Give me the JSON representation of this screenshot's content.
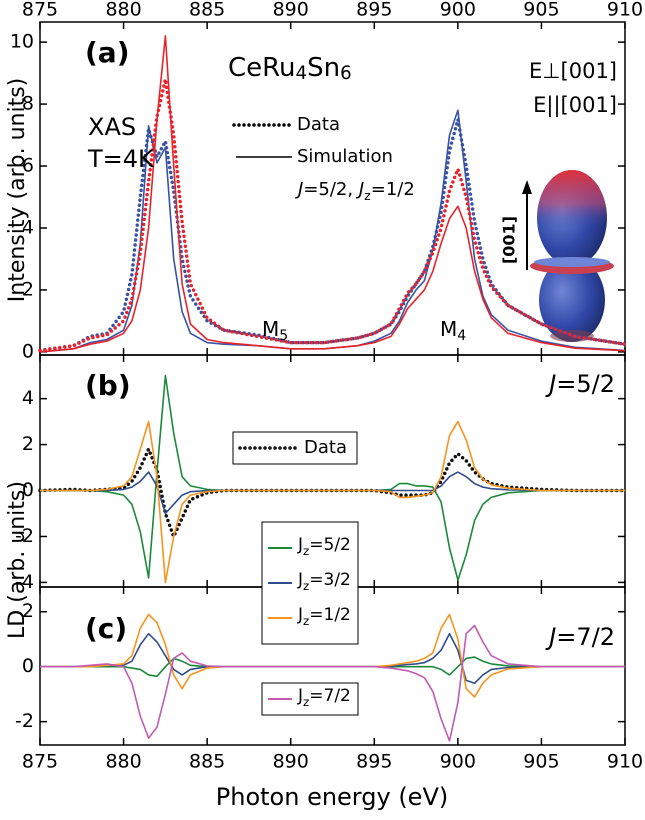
{
  "chart_data": [
    {
      "type": "line",
      "panel": "(a)",
      "y_label": "Intensity (arb. units)",
      "xlim": [
        875,
        910
      ],
      "xticks": [
        875,
        880,
        885,
        890,
        895,
        900,
        905,
        910
      ],
      "ylim": [
        -0.1,
        10.65
      ],
      "yticks": [
        0,
        2,
        4,
        6,
        8,
        10
      ],
      "x": [
        875,
        877,
        878,
        879,
        880,
        880.5,
        881,
        881.5,
        882,
        882.5,
        883,
        883.5,
        884,
        885,
        886,
        888,
        890,
        892,
        894,
        895,
        896,
        896.5,
        897,
        897.5,
        898,
        898.5,
        899,
        899.5,
        900,
        900.5,
        901,
        901.5,
        902,
        903,
        905,
        907,
        910
      ],
      "style_legend": {
        "data": "Data",
        "simulation": "Simulation"
      },
      "series": [
        {
          "name": "E⊥[001]",
          "color": "#3953a4",
          "line_style": "dotted",
          "values": [
            0.05,
            0.2,
            0.5,
            0.6,
            1.3,
            2.5,
            5.0,
            7.2,
            6.3,
            6.8,
            5.2,
            3.0,
            1.8,
            1.0,
            0.7,
            0.55,
            0.3,
            0.3,
            0.45,
            0.6,
            0.9,
            1.3,
            1.8,
            2.2,
            2.6,
            3.4,
            4.5,
            6.5,
            7.5,
            6.0,
            4.2,
            3.0,
            2.2,
            1.5,
            0.9,
            0.5,
            0.25
          ],
          "simulation": [
            0.0,
            0.1,
            0.3,
            0.4,
            0.7,
            1.5,
            3.5,
            7.3,
            6.1,
            6.6,
            3.0,
            1.3,
            0.6,
            0.3,
            0.25,
            0.2,
            0.1,
            0.1,
            0.2,
            0.35,
            0.6,
            1.0,
            1.6,
            2.0,
            2.3,
            3.3,
            4.8,
            7.0,
            7.8,
            5.5,
            3.0,
            1.8,
            1.2,
            0.7,
            0.35,
            0.15,
            0.05
          ]
        },
        {
          "name": "E||[001]",
          "color": "#e8232a",
          "line_style": "dotted",
          "values": [
            0.05,
            0.2,
            0.45,
            0.55,
            1.0,
            1.7,
            3.2,
            5.5,
            7.6,
            8.8,
            7.0,
            4.2,
            2.2,
            1.1,
            0.7,
            0.5,
            0.3,
            0.3,
            0.45,
            0.6,
            0.9,
            1.4,
            1.9,
            2.2,
            2.6,
            3.2,
            4.0,
            5.2,
            5.9,
            5.0,
            3.6,
            2.7,
            2.1,
            1.5,
            0.9,
            0.5,
            0.25
          ],
          "simulation": [
            0.0,
            0.1,
            0.25,
            0.35,
            0.6,
            1.0,
            2.0,
            4.0,
            7.5,
            10.2,
            6.0,
            2.2,
            0.9,
            0.4,
            0.3,
            0.2,
            0.1,
            0.1,
            0.2,
            0.3,
            0.5,
            0.9,
            1.4,
            1.7,
            2.0,
            2.6,
            3.5,
            4.3,
            4.7,
            4.0,
            2.6,
            1.7,
            1.1,
            0.6,
            0.3,
            0.12,
            0.04
          ]
        }
      ],
      "annotations": {
        "compound": [
          "CeRu",
          "4",
          "Sn",
          "6"
        ],
        "method": "XAS",
        "temperature": "T=4K",
        "state": [
          "J",
          "=5/2, ",
          "J",
          "z",
          "=1/2"
        ],
        "m5": [
          "M",
          "5"
        ],
        "m4": [
          "M",
          "4"
        ],
        "axis": "[001]"
      }
    },
    {
      "type": "line",
      "panel": "(b)",
      "y_label": "LD (arb. units)",
      "xlim": [
        875,
        910
      ],
      "xticks": [
        875,
        880,
        885,
        890,
        895,
        900,
        905,
        910
      ],
      "ylim": [
        -4.2,
        5.9
      ],
      "yticks": [
        -4,
        -2,
        0,
        2,
        4
      ],
      "x": [
        875,
        877,
        878,
        879,
        880,
        880.5,
        881,
        881.5,
        882,
        882.5,
        883,
        883.5,
        884,
        885,
        886,
        888,
        890,
        892,
        894,
        895,
        896,
        896.5,
        897,
        897.5,
        898,
        898.5,
        899,
        899.5,
        900,
        900.5,
        901,
        901.5,
        902,
        903,
        905,
        907,
        910
      ],
      "series": [
        {
          "name": "Data",
          "color": "#111111",
          "line_style": "dotted",
          "values": [
            0,
            0.05,
            0,
            0.05,
            0.1,
            0.4,
            1.0,
            1.8,
            0.9,
            -1.0,
            -2.0,
            -1.2,
            -0.4,
            -0.1,
            0,
            0,
            0,
            0,
            0,
            0,
            -0.1,
            -0.2,
            -0.2,
            -0.2,
            -0.2,
            -0.1,
            0.4,
            1.2,
            1.6,
            1.3,
            0.8,
            0.5,
            0.3,
            0.15,
            0.05,
            0,
            0
          ]
        },
        {
          "name": [
            "J",
            "z",
            "=5/2"
          ],
          "color": "#1a8a3a",
          "values": [
            0,
            0,
            0,
            -0.05,
            -0.2,
            -0.6,
            -1.8,
            -3.8,
            0.8,
            5.0,
            2.5,
            0.6,
            0.2,
            0.05,
            0,
            0,
            0,
            0,
            0,
            0,
            0.05,
            0.3,
            0.3,
            0.2,
            0.2,
            0.15,
            -0.5,
            -2.5,
            -3.9,
            -2.8,
            -1.3,
            -0.6,
            -0.3,
            -0.1,
            0,
            0,
            0
          ]
        },
        {
          "name": [
            "J",
            "z",
            "=3/2"
          ],
          "color": "#2f4d8c",
          "values": [
            0,
            0,
            0,
            0,
            0.05,
            0.15,
            0.4,
            0.8,
            0.2,
            -1.0,
            -0.6,
            -0.2,
            -0.05,
            0,
            0,
            0,
            0,
            0,
            0,
            0,
            0,
            0,
            0,
            0,
            0,
            0,
            0.2,
            0.6,
            0.8,
            0.6,
            0.3,
            0.15,
            0.08,
            0.03,
            0,
            0,
            0
          ]
        },
        {
          "name": [
            "J",
            "z",
            "=1/2"
          ],
          "color": "#f7941d",
          "values": [
            0,
            0,
            0,
            0.05,
            0.2,
            0.6,
            1.8,
            3.0,
            0.6,
            -4.0,
            -2.0,
            -0.6,
            -0.2,
            -0.05,
            0,
            0,
            0,
            0,
            0,
            0,
            -0.05,
            -0.3,
            -0.3,
            -0.25,
            -0.2,
            -0.1,
            0.6,
            2.4,
            3.0,
            2.2,
            1.0,
            0.5,
            0.25,
            0.1,
            0,
            0,
            0
          ]
        }
      ],
      "annotations": {
        "state": [
          "J",
          "=5/2"
        ]
      }
    },
    {
      "type": "line",
      "panel": "(c)",
      "x_label": "Photon energy (eV)",
      "xlim": [
        875,
        910
      ],
      "xticks": [
        875,
        880,
        885,
        890,
        895,
        900,
        905,
        910
      ],
      "ylim": [
        -2.85,
        2.9
      ],
      "yticks": [
        -2,
        0,
        2
      ],
      "x": [
        875,
        877,
        878,
        879,
        880,
        880.5,
        881,
        881.5,
        882,
        882.5,
        883,
        883.5,
        884,
        885,
        886,
        888,
        890,
        892,
        894,
        895,
        896,
        896.5,
        897,
        897.5,
        898,
        898.5,
        899,
        899.5,
        900,
        900.5,
        901,
        901.5,
        902,
        903,
        905,
        907,
        910
      ],
      "series": [
        {
          "color": "#1a8a3a",
          "values": [
            0,
            0,
            0,
            0,
            0,
            -0.05,
            -0.1,
            -0.3,
            -0.35,
            0,
            0.3,
            0.2,
            0.05,
            0,
            0,
            0,
            0,
            0,
            0,
            0,
            0,
            0,
            0,
            0,
            0,
            0,
            -0.1,
            -0.3,
            0,
            0.3,
            0.35,
            0.2,
            0.1,
            0.03,
            0,
            0,
            0
          ]
        },
        {
          "color": "#2f4d8c",
          "values": [
            0,
            0,
            0,
            0.05,
            0.05,
            0.2,
            0.8,
            1.2,
            0.9,
            0.4,
            -0.1,
            -0.3,
            -0.1,
            0,
            0,
            0,
            0,
            0,
            0,
            0,
            0.02,
            0.05,
            0.08,
            0.1,
            0.15,
            0.3,
            0.6,
            1.2,
            0.6,
            -0.5,
            -0.6,
            -0.3,
            -0.1,
            -0.03,
            0,
            0,
            0
          ]
        },
        {
          "color": "#f7941d",
          "values": [
            0,
            0,
            0,
            0.05,
            0.1,
            0.4,
            1.4,
            1.9,
            1.6,
            0.8,
            -0.3,
            -0.8,
            -0.3,
            -0.05,
            0,
            0,
            0,
            0,
            0,
            0,
            0.05,
            0.1,
            0.15,
            0.2,
            0.3,
            0.5,
            1.4,
            1.9,
            1.0,
            -0.8,
            -1.1,
            -0.6,
            -0.3,
            -0.08,
            0,
            0,
            0
          ]
        },
        {
          "name": [
            "J",
            "z",
            "=7/2"
          ],
          "color": "#c35ab4",
          "values": [
            0,
            0,
            0.05,
            0.1,
            0,
            -0.6,
            -1.8,
            -2.6,
            -2.2,
            -1.0,
            0.3,
            0.5,
            0.2,
            0.03,
            0,
            0,
            0,
            0,
            0,
            0,
            -0.05,
            -0.1,
            -0.15,
            -0.25,
            -0.4,
            -0.9,
            -1.9,
            -2.7,
            -1.3,
            1.2,
            1.5,
            0.9,
            0.4,
            0.1,
            0,
            0,
            0
          ]
        }
      ],
      "annotations": {
        "state": [
          "J",
          "=7/2"
        ]
      }
    }
  ]
}
